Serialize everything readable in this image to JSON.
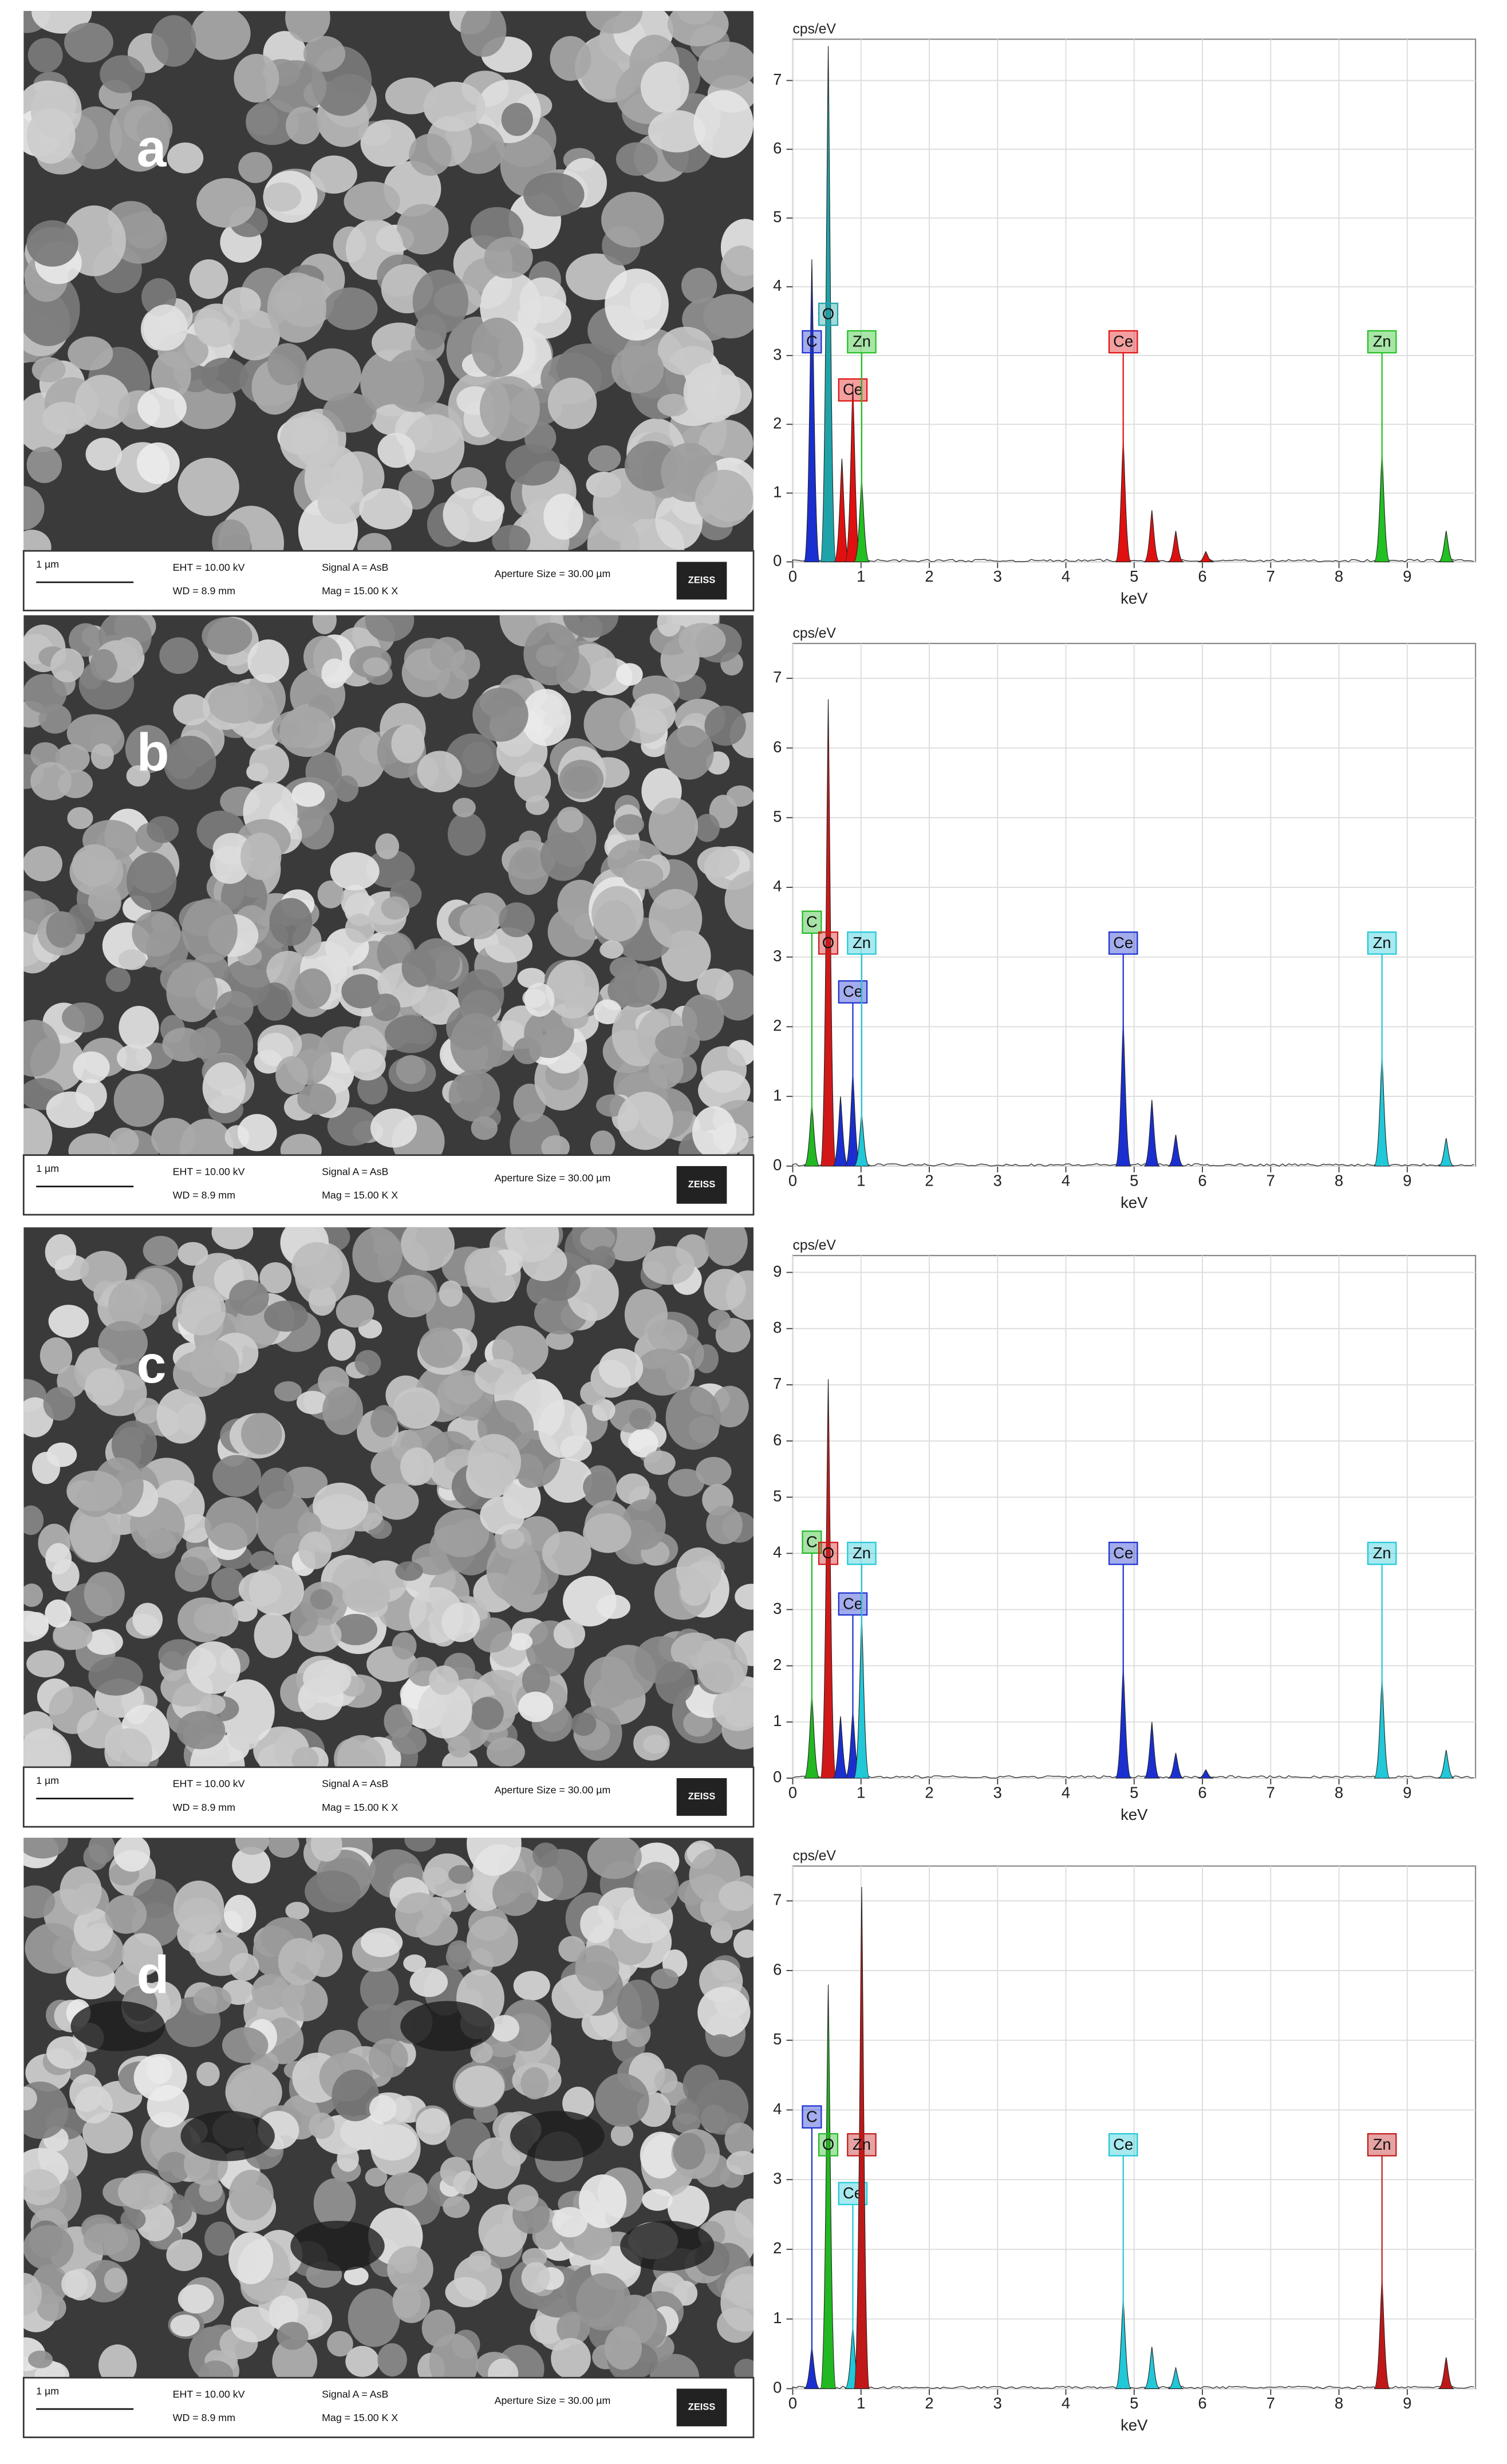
{
  "panels": [
    {
      "label": "a",
      "info": {
        "scale": "1 µm",
        "eht": "EHT = 10.00 kV",
        "wd": "WD = 8.9 mm",
        "signal": "Signal A = AsB",
        "mag": "Mag =  15.00 K X",
        "aperture": "Aperture Size = 30.00 µm",
        "logo": "ZEISS"
      }
    },
    {
      "label": "b",
      "info": {
        "scale": "1 µm",
        "eht": "EHT = 10.00 kV",
        "wd": "WD = 8.9 mm",
        "signal": "Signal A = AsB",
        "mag": "Mag =  15.00 K X",
        "aperture": "Aperture Size = 30.00 µm",
        "logo": "ZEISS"
      }
    },
    {
      "label": "c",
      "info": {
        "scale": "1 µm",
        "eht": "EHT = 10.00 kV",
        "wd": "WD = 8.9 mm",
        "signal": "Signal A = AsB",
        "mag": "Mag =  15.00 K X",
        "aperture": "Aperture Size = 30.00 µm",
        "logo": "ZEISS"
      }
    },
    {
      "label": "d",
      "info": {
        "scale": "1 µm",
        "eht": "EHT = 10.00 kV",
        "wd": "WD = 8.9 mm",
        "signal": "Signal A = AsB",
        "mag": "Mag =  15.00 K X",
        "aperture": "Aperture Size = 30.00 µm",
        "logo": "ZEISS"
      }
    }
  ],
  "chart_data": [
    {
      "type": "area",
      "ylabel": "cps/eV",
      "xlabel": "keV",
      "xlim": [
        0,
        10
      ],
      "xticks": [
        0,
        1,
        2,
        3,
        4,
        5,
        6,
        7,
        8,
        9
      ],
      "ylim": [
        0,
        7.6
      ],
      "yticks": [
        0,
        1,
        2,
        3,
        4,
        5,
        6,
        7
      ],
      "grid": true,
      "series": [
        {
          "name": "C",
          "color": "#1a2fd0",
          "x": [
            0.28
          ],
          "values": [
            4.4
          ],
          "label_x": [
            0.28
          ],
          "label_y": [
            3.2
          ]
        },
        {
          "name": "O",
          "color": "#1fa3a8",
          "x": [
            0.52
          ],
          "values": [
            7.5
          ],
          "label_x": [
            0.52
          ],
          "label_y": [
            3.6
          ]
        },
        {
          "name": "Ce",
          "color": "#e01010",
          "x": [
            0.72,
            0.88,
            4.84,
            5.26,
            5.61,
            6.05
          ],
          "values": [
            1.5,
            2.6,
            1.8,
            0.75,
            0.45,
            0.15
          ],
          "label_x": [
            0.88,
            4.84
          ],
          "label_y": [
            2.5,
            3.2
          ]
        },
        {
          "name": "Zn",
          "color": "#22c022",
          "x": [
            1.01,
            8.63,
            9.57
          ],
          "values": [
            1.2,
            1.6,
            0.45
          ],
          "label_x": [
            1.01,
            8.63
          ],
          "label_y": [
            3.2,
            3.2
          ]
        }
      ]
    },
    {
      "type": "area",
      "ylabel": "cps/eV",
      "xlabel": "keV",
      "xlim": [
        0,
        10
      ],
      "xticks": [
        0,
        1,
        2,
        3,
        4,
        5,
        6,
        7,
        8,
        9
      ],
      "ylim": [
        0,
        7.5
      ],
      "yticks": [
        0,
        1,
        2,
        3,
        4,
        5,
        6,
        7
      ],
      "grid": true,
      "series": [
        {
          "name": "C",
          "color": "#22b822",
          "x": [
            0.28
          ],
          "values": [
            0.9
          ],
          "label_x": [
            0.28
          ],
          "label_y": [
            3.5
          ]
        },
        {
          "name": "O",
          "color": "#d01818",
          "x": [
            0.52
          ],
          "values": [
            6.7
          ],
          "label_x": [
            0.52
          ],
          "label_y": [
            3.2
          ]
        },
        {
          "name": "Ce",
          "color": "#1a2fd0",
          "x": [
            0.7,
            0.88,
            4.84,
            5.26,
            5.61
          ],
          "values": [
            1.0,
            1.35,
            2.1,
            0.95,
            0.45
          ],
          "label_x": [
            0.88,
            4.84
          ],
          "label_y": [
            2.5,
            3.2
          ]
        },
        {
          "name": "Zn",
          "color": "#20c8d8",
          "x": [
            1.01,
            8.63,
            9.57
          ],
          "values": [
            0.75,
            1.6,
            0.4
          ],
          "label_x": [
            1.01,
            8.63
          ],
          "label_y": [
            3.2,
            3.2
          ]
        }
      ]
    },
    {
      "type": "area",
      "ylabel": "cps/eV",
      "xlabel": "keV",
      "xlim": [
        0,
        10
      ],
      "xticks": [
        0,
        1,
        2,
        3,
        4,
        5,
        6,
        7,
        8,
        9
      ],
      "ylim": [
        0,
        9.3
      ],
      "yticks": [
        0,
        1,
        2,
        3,
        4,
        5,
        6,
        7,
        8,
        9
      ],
      "grid": true,
      "series": [
        {
          "name": "C",
          "color": "#22b822",
          "x": [
            0.28
          ],
          "values": [
            1.5
          ],
          "label_x": [
            0.28
          ],
          "label_y": [
            4.2
          ]
        },
        {
          "name": "O",
          "color": "#d01818",
          "x": [
            0.52
          ],
          "values": [
            7.1
          ],
          "label_x": [
            0.52
          ],
          "label_y": [
            4.0
          ]
        },
        {
          "name": "Ce",
          "color": "#1a2fd0",
          "x": [
            0.7,
            0.88,
            4.84,
            5.26,
            5.61,
            6.05
          ],
          "values": [
            1.1,
            1.2,
            2.0,
            1.0,
            0.45,
            0.15
          ],
          "label_x": [
            0.88,
            4.84
          ],
          "label_y": [
            3.1,
            4.0
          ]
        },
        {
          "name": "Zn",
          "color": "#20c8d8",
          "x": [
            1.01,
            8.63,
            9.57
          ],
          "values": [
            2.9,
            1.8,
            0.5
          ],
          "label_x": [
            1.01,
            8.63
          ],
          "label_y": [
            4.0,
            4.0
          ]
        }
      ]
    },
    {
      "type": "area",
      "ylabel": "cps/eV",
      "xlabel": "keV",
      "xlim": [
        0,
        10
      ],
      "xticks": [
        0,
        1,
        2,
        3,
        4,
        5,
        6,
        7,
        8,
        9
      ],
      "ylim": [
        0,
        7.5
      ],
      "yticks": [
        0,
        1,
        2,
        3,
        4,
        5,
        6,
        7
      ],
      "grid": true,
      "series": [
        {
          "name": "C",
          "color": "#1a2fd0",
          "x": [
            0.28
          ],
          "values": [
            0.6
          ],
          "label_x": [
            0.28
          ],
          "label_y": [
            3.9
          ]
        },
        {
          "name": "O",
          "color": "#22b822",
          "x": [
            0.52
          ],
          "values": [
            5.8
          ],
          "label_x": [
            0.52
          ],
          "label_y": [
            3.5
          ]
        },
        {
          "name": "Ce",
          "color": "#20c8d8",
          "x": [
            0.88,
            4.84,
            5.26,
            5.61
          ],
          "values": [
            0.9,
            1.3,
            0.6,
            0.3
          ],
          "label_x": [
            0.88,
            4.84
          ],
          "label_y": [
            2.8,
            3.5
          ]
        },
        {
          "name": "Zn",
          "color": "#c01818",
          "x": [
            1.01,
            8.63,
            9.57
          ],
          "values": [
            7.2,
            1.6,
            0.45
          ],
          "label_x": [
            1.01,
            8.63
          ],
          "label_y": [
            3.5,
            3.5
          ]
        }
      ]
    }
  ]
}
